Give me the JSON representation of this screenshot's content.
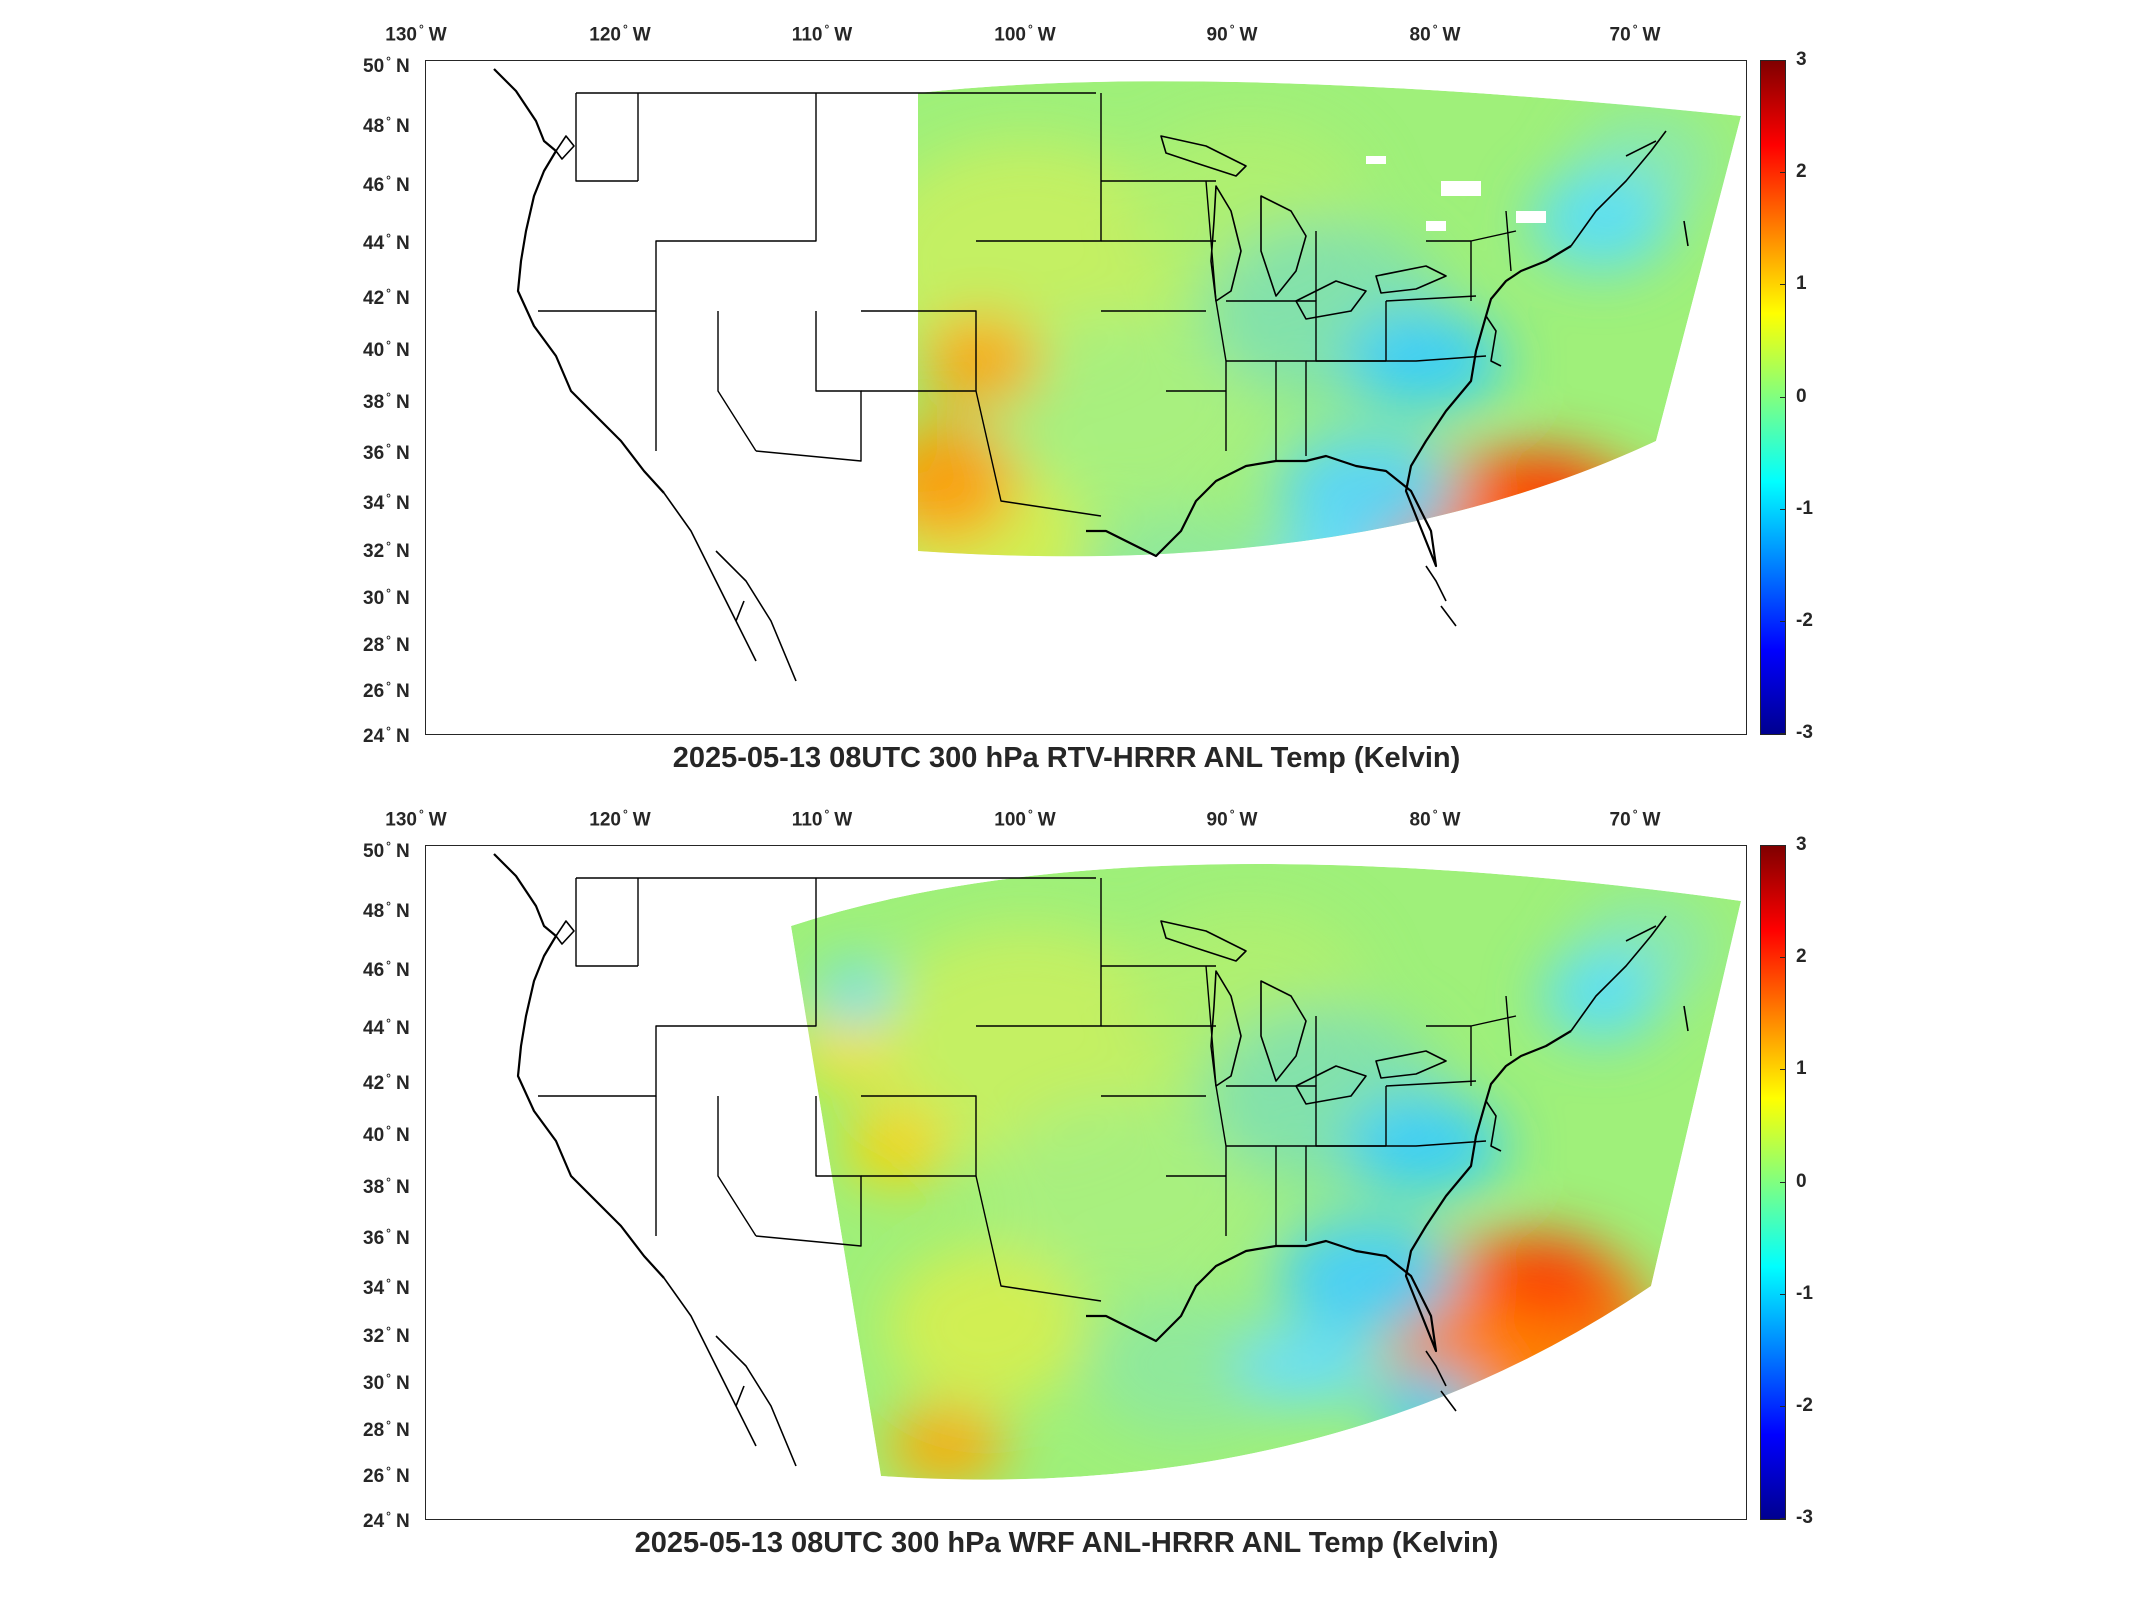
{
  "figure": {
    "panels": [
      {
        "title": "2025-05-13 08UTC 300 hPa RTV-HRRR ANL Temp (Kelvin)",
        "domain_coverage": "partial-east",
        "warm_anomaly_regions": [
          "Atlantic east of Carolinas",
          "Southwest US",
          "South Texas"
        ],
        "cool_anomaly_regions": [
          "Virginia / Carolinas",
          "Georgia / Florida",
          "New England"
        ]
      },
      {
        "title": "2025-05-13 08UTC 300 hPa WRF ANL-HRRR ANL Temp (Kelvin)",
        "domain_coverage": "full-hrrr",
        "warm_anomaly_regions": [
          "Atlantic east of Carolinas",
          "South Texas",
          "Rockies"
        ],
        "cool_anomaly_regions": [
          "Virginia / Carolinas",
          "Georgia / Florida",
          "Quebec / Maine"
        ]
      }
    ],
    "lon_ticks": [
      {
        "deg": "130",
        "hemi": "W"
      },
      {
        "deg": "120",
        "hemi": "W"
      },
      {
        "deg": "110",
        "hemi": "W"
      },
      {
        "deg": "100",
        "hemi": "W"
      },
      {
        "deg": "90",
        "hemi": "W"
      },
      {
        "deg": "80",
        "hemi": "W"
      },
      {
        "deg": "70",
        "hemi": "W"
      }
    ],
    "lat_ticks": [
      {
        "deg": "50",
        "hemi": "N"
      },
      {
        "deg": "48",
        "hemi": "N"
      },
      {
        "deg": "46",
        "hemi": "N"
      },
      {
        "deg": "44",
        "hemi": "N"
      },
      {
        "deg": "42",
        "hemi": "N"
      },
      {
        "deg": "40",
        "hemi": "N"
      },
      {
        "deg": "38",
        "hemi": "N"
      },
      {
        "deg": "36",
        "hemi": "N"
      },
      {
        "deg": "34",
        "hemi": "N"
      },
      {
        "deg": "32",
        "hemi": "N"
      },
      {
        "deg": "30",
        "hemi": "N"
      },
      {
        "deg": "28",
        "hemi": "N"
      },
      {
        "deg": "26",
        "hemi": "N"
      },
      {
        "deg": "24",
        "hemi": "N"
      }
    ],
    "colorbar": {
      "ticks": [
        "3",
        "2",
        "1",
        "0",
        "-1",
        "-2",
        "-3"
      ],
      "min": -3,
      "max": 3,
      "colormap": "jet",
      "colors": {
        "max": "#800000",
        "zero": "#80ff80",
        "min": "#00008f"
      }
    }
  }
}
